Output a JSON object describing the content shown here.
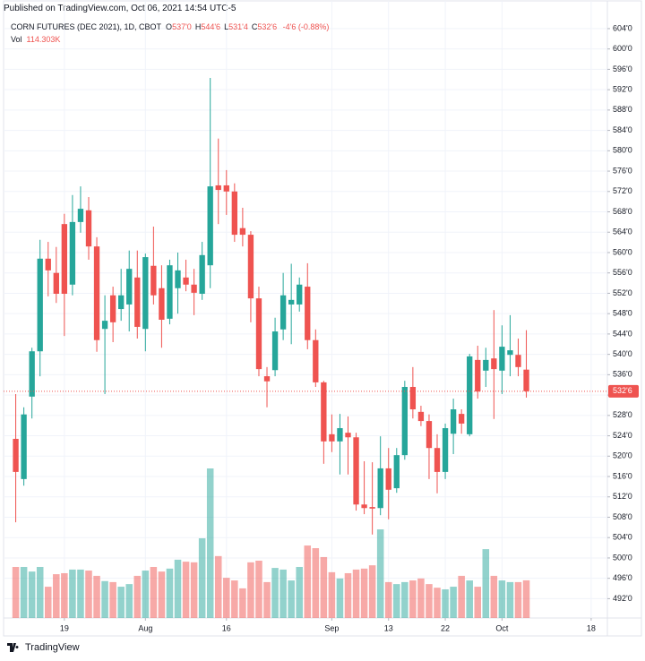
{
  "chart_data": {
    "type": "candlestick",
    "published": "Published on TradingView.com, Oct 06, 2021 14:54 UTC-5",
    "symbol": "CORN FUTURES (DEC 2021), 1D, CBOT",
    "ohlc_header": [
      {
        "key": "O",
        "value": "537'0"
      },
      {
        "key": "H",
        "value": "544'6"
      },
      {
        "key": "L",
        "value": "531'4"
      },
      {
        "key": "C",
        "value": "532'6"
      }
    ],
    "change": "-4'6 (-0.88%)",
    "volume_label": "Vol",
    "volume_value": "114.303K",
    "footer": "TradingView",
    "up_color": "#26a69a",
    "down_color": "#ef5350",
    "grid": true,
    "open": [
      523.4,
      515.5,
      531.7,
      540.6,
      558.8,
      556.0,
      565.6,
      553.7,
      566.0,
      568.3,
      561.2,
      545.0,
      551.6,
      548.9,
      549.8,
      555.1,
      545.0,
      557.4,
      553.0,
      547.0,
      553.0,
      555.1,
      553.7,
      551.9,
      557.5,
      573.2,
      573.2,
      572.0,
      564.8,
      563.5,
      551.0,
      535.7,
      536.9,
      544.9,
      549.8,
      549.8,
      553.3,
      542.8,
      534.5,
      524.3,
      522.9,
      524.6,
      523.7,
      510.5,
      510.0,
      509.8,
      517.6,
      513.7,
      520.2,
      533.6,
      528.7,
      526.9,
      521.6,
      516.9,
      524.4,
      528.3,
      524.3,
      538.9,
      536.8,
      539.2,
      536.8,
      539.9,
      539.9,
      537.0
    ],
    "high": [
      532.2,
      529.6,
      541.3,
      562.5,
      562.1,
      561.1,
      567.6,
      571.3,
      573.0,
      570.9,
      563.0,
      551.6,
      553.3,
      556.8,
      560.4,
      560.4,
      559.8,
      565.1,
      557.5,
      558.6,
      560.0,
      558.6,
      556.8,
      562.1,
      594.3,
      582.4,
      576.2,
      573.6,
      568.8,
      564.2,
      553.3,
      537.5,
      547.2,
      556.0,
      557.8,
      555.1,
      557.9,
      544.9,
      534.8,
      528.2,
      528.3,
      527.8,
      524.6,
      519.0,
      518.8,
      523.9,
      521.6,
      521.6,
      534.8,
      537.5,
      529.9,
      528.2,
      524.3,
      526.4,
      531.3,
      529.2,
      540.1,
      541.7,
      541.3,
      548.7,
      545.7,
      547.7,
      543.1,
      544.75
    ],
    "low": [
      507.0,
      514.2,
      527.4,
      535.7,
      551.4,
      550.1,
      543.6,
      551.6,
      563.9,
      558.6,
      540.5,
      532.2,
      542.4,
      546.6,
      544.5,
      543.1,
      540.6,
      549.8,
      541.3,
      545.9,
      548.0,
      552.4,
      547.7,
      550.7,
      553.0,
      565.6,
      567.4,
      562.1,
      561.2,
      546.3,
      535.7,
      529.6,
      535.7,
      542.8,
      542.0,
      548.4,
      541.0,
      533.6,
      518.5,
      520.8,
      516.4,
      516.4,
      509.3,
      508.6,
      504.6,
      508.4,
      507.6,
      512.8,
      519.3,
      527.4,
      525.9,
      515.5,
      512.7,
      515.5,
      520.4,
      524.4,
      523.9,
      531.3,
      533.6,
      527.3,
      532.2,
      535.7,
      535.7,
      531.5
    ],
    "close": [
      516.9,
      528.2,
      540.6,
      558.8,
      556.5,
      551.9,
      551.9,
      566.0,
      568.6,
      561.2,
      542.8,
      546.6,
      546.3,
      551.6,
      556.8,
      545.4,
      559.1,
      551.6,
      546.8,
      557.5,
      556.5,
      553.7,
      552.1,
      559.5,
      573.0,
      572.3,
      572.0,
      563.5,
      563.5,
      551.0,
      537.1,
      534.7,
      544.5,
      551.6,
      550.7,
      553.7,
      542.8,
      534.5,
      522.9,
      522.9,
      525.5,
      523.7,
      510.5,
      509.8,
      509.7,
      517.6,
      513.4,
      520.2,
      533.6,
      529.2,
      526.9,
      521.6,
      516.9,
      525.5,
      529.2,
      526.4,
      539.6,
      532.7,
      538.9,
      537.1,
      541.5,
      540.8,
      537.5,
      532.75
    ],
    "volume": [
      155,
      155,
      141,
      155,
      95,
      133,
      136,
      147,
      147,
      144,
      128,
      112,
      109,
      95,
      103,
      128,
      144,
      155,
      141,
      150,
      177,
      171,
      169,
      242,
      454,
      188,
      122,
      114,
      90,
      169,
      174,
      109,
      152,
      147,
      114,
      155,
      220,
      212,
      185,
      139,
      120,
      136,
      147,
      150,
      160,
      269,
      109,
      103,
      109,
      114,
      120,
      103,
      92,
      87,
      95,
      128,
      114,
      95,
      209,
      128,
      114,
      109,
      109,
      114.303
    ],
    "last_price": {
      "value": 532.75,
      "label": "532'6"
    },
    "xlim": [
      -1.5,
      73
    ],
    "xticks": [
      {
        "value": 6,
        "label": "19"
      },
      {
        "value": 16,
        "label": "Aug"
      },
      {
        "value": 26,
        "label": "16"
      },
      {
        "value": 39,
        "label": "Sep"
      },
      {
        "value": 46,
        "label": "13"
      },
      {
        "value": 53,
        "label": "22"
      },
      {
        "value": 60,
        "label": "Oct"
      },
      {
        "value": 71,
        "label": "18"
      }
    ],
    "ylim": [
      488.2,
      606.1
    ],
    "yticks": [
      {
        "value": 604,
        "label": "604'0"
      },
      {
        "value": 600,
        "label": "600'0"
      },
      {
        "value": 596,
        "label": "596'0"
      },
      {
        "value": 592,
        "label": "592'0"
      },
      {
        "value": 588,
        "label": "588'0"
      },
      {
        "value": 584,
        "label": "584'0"
      },
      {
        "value": 580,
        "label": "580'0"
      },
      {
        "value": 576,
        "label": "576'0"
      },
      {
        "value": 572,
        "label": "572'0"
      },
      {
        "value": 568,
        "label": "568'0"
      },
      {
        "value": 564,
        "label": "564'0"
      },
      {
        "value": 560,
        "label": "560'0"
      },
      {
        "value": 556,
        "label": "556'0"
      },
      {
        "value": 552,
        "label": "552'0"
      },
      {
        "value": 548,
        "label": "548'0"
      },
      {
        "value": 544,
        "label": "544'0"
      },
      {
        "value": 540,
        "label": "540'0"
      },
      {
        "value": 536,
        "label": "536'0"
      },
      {
        "value": 532,
        "label": "532'0"
      },
      {
        "value": 528,
        "label": "528'0"
      },
      {
        "value": 524,
        "label": "524'0"
      },
      {
        "value": 520,
        "label": "520'0"
      },
      {
        "value": 516,
        "label": "516'0"
      },
      {
        "value": 512,
        "label": "512'0"
      },
      {
        "value": 508,
        "label": "508'0"
      },
      {
        "value": 504,
        "label": "504'0"
      },
      {
        "value": 500,
        "label": "500'0"
      },
      {
        "value": 496,
        "label": "496'0"
      },
      {
        "value": 492,
        "label": "492'0"
      }
    ]
  }
}
